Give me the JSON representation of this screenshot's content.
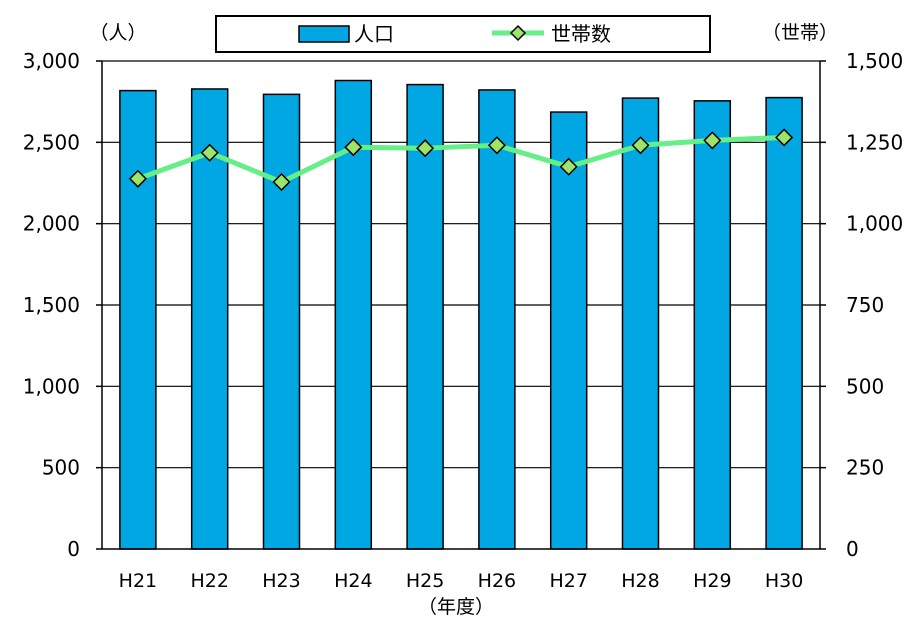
{
  "chart_data": {
    "type": "bar",
    "categories": [
      "H21",
      "H22",
      "H23",
      "H24",
      "H25",
      "H26",
      "H27",
      "H28",
      "H29",
      "H30"
    ],
    "series": [
      {
        "name": "人口",
        "type": "bar",
        "axis": "left",
        "values": [
          2818,
          2828,
          2795,
          2880,
          2855,
          2822,
          2686,
          2772,
          2755,
          2775
        ]
      },
      {
        "name": "世帯数",
        "type": "line",
        "axis": "right",
        "values": [
          1138,
          1218,
          1128,
          1235,
          1232,
          1241,
          1175,
          1241,
          1256,
          1265
        ]
      }
    ],
    "xlabel": "（年度）",
    "ylabel_left": "（人）",
    "ylabel_right": "（世帯）",
    "ylim_left": [
      0,
      3000
    ],
    "ylim_right": [
      0,
      1500
    ],
    "yticks_left": [
      "0",
      "500",
      "1,000",
      "1,500",
      "2,000",
      "2,500",
      "3,000"
    ],
    "yticks_right": [
      "0",
      "250",
      "500",
      "750",
      "1,000",
      "1,250",
      "1,500"
    ],
    "grid": true,
    "legend_position": "top-center",
    "colors": {
      "bar_fill": "#00a7e3",
      "bar_stroke": "#000000",
      "line": "#66ee88",
      "marker_fill": "#9ee36a",
      "marker_stroke": "#000000",
      "grid": "#000000"
    }
  }
}
